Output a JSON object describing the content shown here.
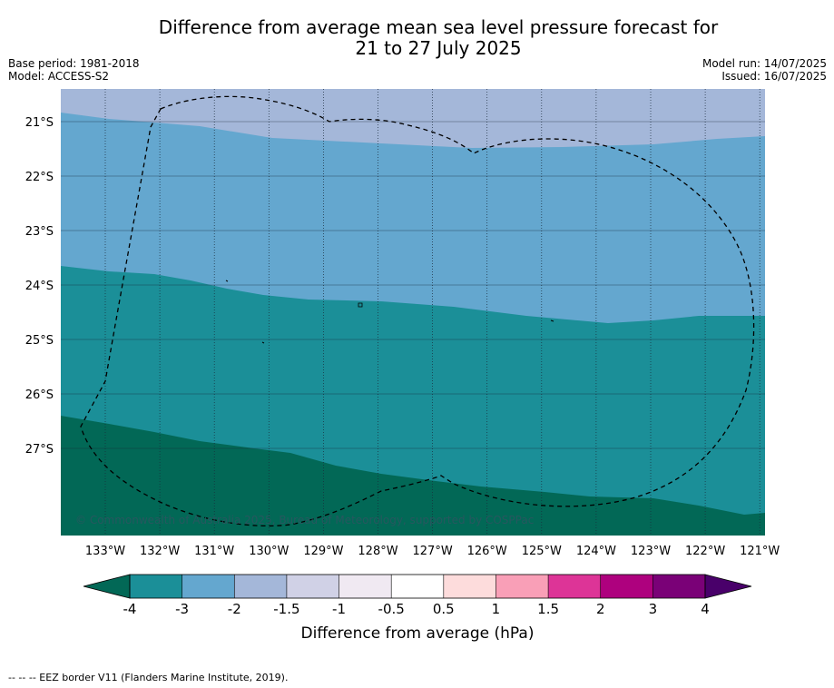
{
  "header": {
    "title_line1": "Difference from average mean sea level pressure forecast for",
    "title_line2": "21 to 27 July 2025",
    "base_period": "Base period: 1981-2018",
    "model": "Model: ACCESS-S2",
    "model_run": "Model run: 14/07/2025",
    "issued": "Issued: 16/07/2025"
  },
  "map": {
    "copyright": "© Commonwealth of Australia 2025, Bureau of Meteorology, supported by COSPPac",
    "lon_labels": [
      "133°W",
      "132°W",
      "131°W",
      "130°W",
      "129°W",
      "128°W",
      "127°W",
      "126°W",
      "125°W",
      "124°W",
      "123°W",
      "122°W",
      "121°W"
    ],
    "lat_labels": [
      "21°S",
      "22°S",
      "23°S",
      "24°S",
      "25°S",
      "26°S",
      "27°S"
    ],
    "colors": {
      "band_minus_1_5": "#a4b7d9",
      "band_minus_2": "#64a7cf",
      "band_minus_3": "#1b8f98",
      "band_minus_4": "#026856"
    }
  },
  "colorbar": {
    "tick_labels": [
      "-4",
      "-3",
      "-2",
      "-1.5",
      "-1",
      "-0.5",
      "0.5",
      "1",
      "1.5",
      "2",
      "3",
      "4"
    ],
    "segment_colors": [
      "#1b8f98",
      "#64a7cf",
      "#a4b7d9",
      "#d0d1e6",
      "#f0e9f2",
      "#ffffff",
      "#fddcdc",
      "#f99fb7",
      "#dd3497",
      "#ae017e",
      "#7a0177"
    ],
    "low_extend_color": "#026856",
    "high_extend_color": "#49006a",
    "label": "Difference from average (hPa)"
  },
  "footer": {
    "legend": "--  --  -- EEZ border V11 (Flanders Marine Institute, 2019)."
  }
}
